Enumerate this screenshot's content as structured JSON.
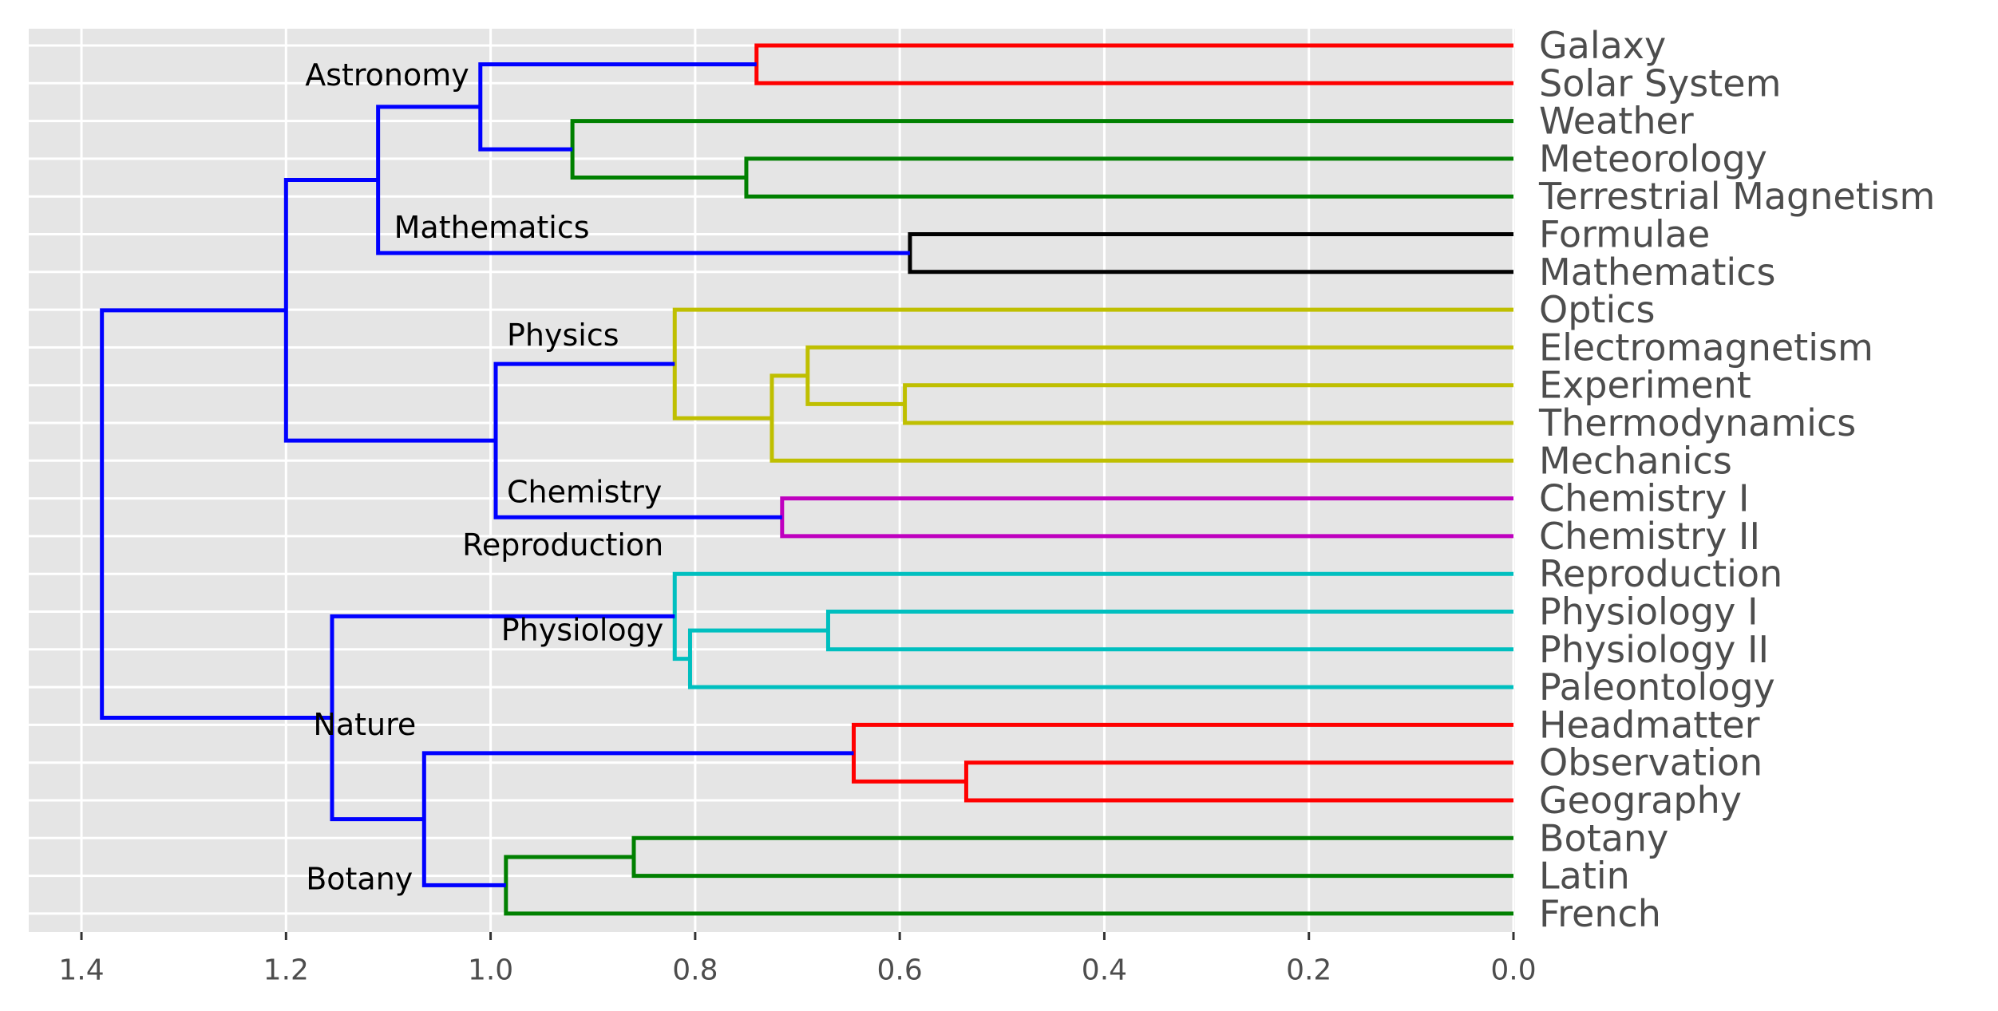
{
  "chart_data": {
    "type": "dendrogram",
    "orientation": "left",
    "xlim": [
      1.43,
      0.0
    ],
    "xticks": [
      1.4,
      1.2,
      1.0,
      0.8,
      0.6,
      0.4,
      0.2,
      0.0
    ],
    "xtick_labels": [
      "1.4",
      "1.2",
      "1.0",
      "0.8",
      "0.6",
      "0.4",
      "0.2",
      "0.0"
    ],
    "grid": true,
    "leaves": [
      "Galaxy",
      "Solar System",
      "Weather",
      "Meteorology",
      "Terrestrial Magnetism",
      "Formulae",
      "Mathematics",
      "Optics",
      "Electromagnetism",
      "Experiment",
      "Thermodynamics",
      "Mechanics",
      "Chemistry I",
      "Chemistry II",
      "Reproduction",
      "Physiology I",
      "Physiology II",
      "Paleontology",
      "Headmatter",
      "Observation",
      "Geography",
      "Botany",
      "Latin",
      "French"
    ],
    "links": [
      {
        "id": "galaxy_solar",
        "height": 0.74,
        "left": "Galaxy",
        "right": "Solar System",
        "color": "#ff0000"
      },
      {
        "id": "met_terr",
        "height": 0.75,
        "left": "Meteorology",
        "right": "Terrestrial Magnetism",
        "color": "#008000"
      },
      {
        "id": "weather_grp",
        "height": 0.92,
        "left": "Weather",
        "right": "met_terr",
        "color": "#008000"
      },
      {
        "id": "astronomy",
        "height": 1.01,
        "left": "galaxy_solar",
        "right": "weather_grp",
        "color": "#0000ff"
      },
      {
        "id": "form_math",
        "height": 0.59,
        "left": "Formulae",
        "right": "Mathematics",
        "color": "#000000"
      },
      {
        "id": "astro_math",
        "height": 1.11,
        "left": "astronomy",
        "right": "form_math",
        "color": "#0000ff"
      },
      {
        "id": "exp_thermo",
        "height": 0.595,
        "left": "Experiment",
        "right": "Thermodynamics",
        "color": "#bfbf00"
      },
      {
        "id": "em_grp",
        "height": 0.69,
        "left": "Electromagnetism",
        "right": "exp_thermo",
        "color": "#bfbf00"
      },
      {
        "id": "em_mech",
        "height": 0.725,
        "left": "em_grp",
        "right": "Mechanics",
        "color": "#bfbf00"
      },
      {
        "id": "physics",
        "height": 0.82,
        "left": "Optics",
        "right": "em_mech",
        "color": "#bfbf00"
      },
      {
        "id": "chemistry",
        "height": 0.715,
        "left": "Chemistry I",
        "right": "Chemistry II",
        "color": "#bf00bf"
      },
      {
        "id": "phys_chem",
        "height": 0.995,
        "left": "physics",
        "right": "chemistry",
        "color": "#0000ff"
      },
      {
        "id": "upper",
        "height": 1.2,
        "left": "astro_math",
        "right": "phys_chem",
        "color": "#0000ff"
      },
      {
        "id": "physio12",
        "height": 0.67,
        "left": "Physiology I",
        "right": "Physiology II",
        "color": "#00bfbf"
      },
      {
        "id": "physiology",
        "height": 0.805,
        "left": "physio12",
        "right": "Paleontology",
        "color": "#00bfbf"
      },
      {
        "id": "reproduction",
        "height": 0.82,
        "left": "Reproduction",
        "right": "physiology",
        "color": "#00bfbf"
      },
      {
        "id": "obs_geo",
        "height": 0.535,
        "left": "Observation",
        "right": "Geography",
        "color": "#ff0000"
      },
      {
        "id": "nature",
        "height": 0.645,
        "left": "Headmatter",
        "right": "obs_geo",
        "color": "#ff0000"
      },
      {
        "id": "bot_latin",
        "height": 0.86,
        "left": "Botany",
        "right": "Latin",
        "color": "#008000"
      },
      {
        "id": "botany",
        "height": 0.985,
        "left": "bot_latin",
        "right": "French",
        "color": "#008000"
      },
      {
        "id": "nature_botany",
        "height": 1.065,
        "left": "nature",
        "right": "botany",
        "color": "#0000ff"
      },
      {
        "id": "lower",
        "height": 1.155,
        "left": "reproduction",
        "right": "nature_botany",
        "color": "#0000ff"
      },
      {
        "id": "root",
        "height": 1.38,
        "left": "upper",
        "right": "lower",
        "color": "#0000ff"
      }
    ],
    "cluster_labels": [
      {
        "text": "Astronomy",
        "node": "astronomy"
      },
      {
        "text": "Mathematics",
        "node": "form_math"
      },
      {
        "text": "Physics",
        "node": "physics"
      },
      {
        "text": "Chemistry",
        "node": "chemistry"
      },
      {
        "text": "Reproduction",
        "node": "reproduction"
      },
      {
        "text": "Physiology",
        "node": "physiology"
      },
      {
        "text": "Nature",
        "node": "nature"
      },
      {
        "text": "Botany",
        "node": "botany"
      }
    ]
  },
  "colors": {
    "panel_background": "#e5e5e5",
    "grid": "#ffffff",
    "text": "#4d4d4d"
  }
}
